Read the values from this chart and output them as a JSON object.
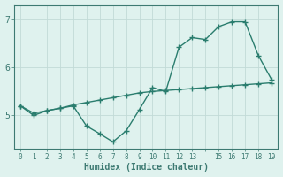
{
  "xlabel": "Humidex (Indice chaleur)",
  "x_values": [
    0,
    1,
    2,
    3,
    4,
    5,
    6,
    7,
    8,
    9,
    10,
    11,
    12,
    13,
    14,
    15,
    16,
    17,
    18,
    19
  ],
  "x_tick_labels": [
    "0",
    "1",
    "2",
    "3",
    "4",
    "5",
    "6",
    "7",
    "8",
    "9",
    "10",
    "11",
    "12",
    "13",
    "",
    "15",
    "16",
    "17",
    "18",
    "19"
  ],
  "line1_y": [
    5.2,
    5.0,
    5.1,
    5.15,
    5.2,
    4.78,
    4.62,
    4.45,
    4.68,
    5.12,
    5.58,
    5.5,
    6.42,
    6.62,
    6.58,
    6.85,
    6.95,
    6.95,
    6.25,
    5.75
  ],
  "line2_y": [
    5.2,
    5.05,
    5.1,
    5.15,
    5.22,
    5.27,
    5.32,
    5.37,
    5.42,
    5.47,
    5.5,
    5.52,
    5.54,
    5.56,
    5.58,
    5.6,
    5.62,
    5.64,
    5.66,
    5.68
  ],
  "line_color": "#2a7d6e",
  "bg_color": "#dff2ee",
  "grid_color": "#c2dbd7",
  "axis_color": "#3d7a72",
  "ylim": [
    4.3,
    7.3
  ],
  "yticks": [
    5,
    6,
    7
  ],
  "marker": "+",
  "marker_size": 5,
  "line_width": 1.0
}
